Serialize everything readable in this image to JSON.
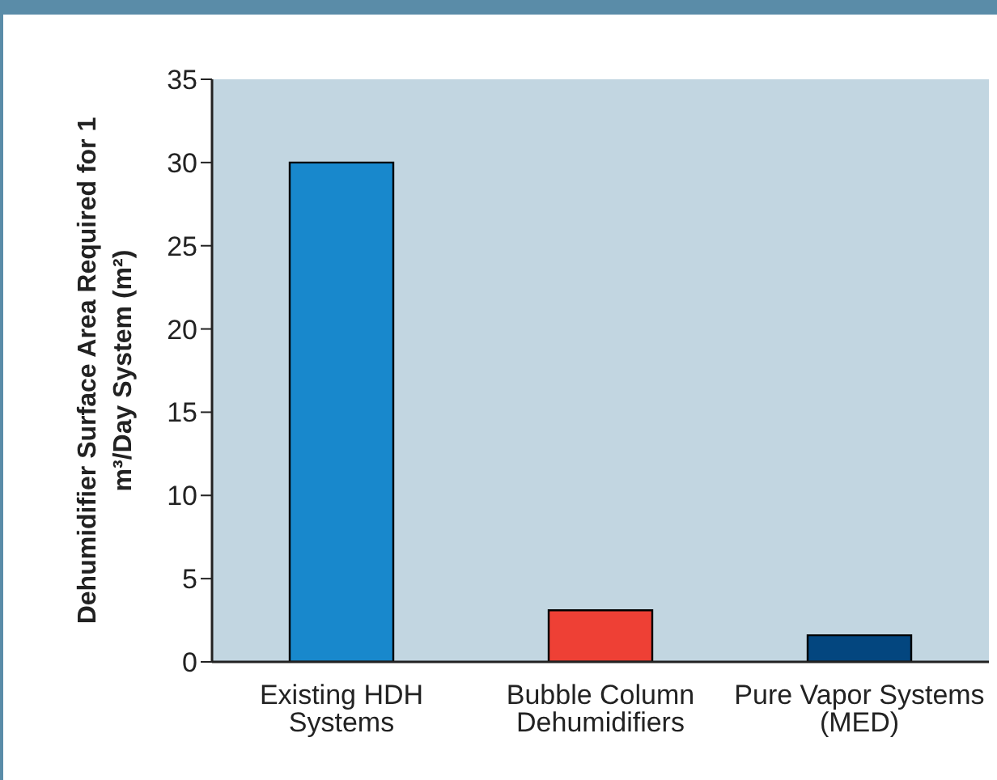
{
  "chart_data": {
    "type": "bar",
    "ylabel": "Dehumidifier Surface Area Required for 1 m³/Day System (m²)",
    "categories": [
      "Existing HDH Systems",
      "Bubble Column Dehumidifiers",
      "Pure Vapor Systems (MED)"
    ],
    "values": [
      30,
      3.1,
      1.6
    ],
    "colors": [
      "#1888cc",
      "#ee4035",
      "#03467f"
    ],
    "ylim": [
      0,
      35
    ],
    "yticks": [
      0,
      5,
      10,
      15,
      20,
      25,
      30,
      35
    ],
    "grid": false,
    "legend": false
  }
}
